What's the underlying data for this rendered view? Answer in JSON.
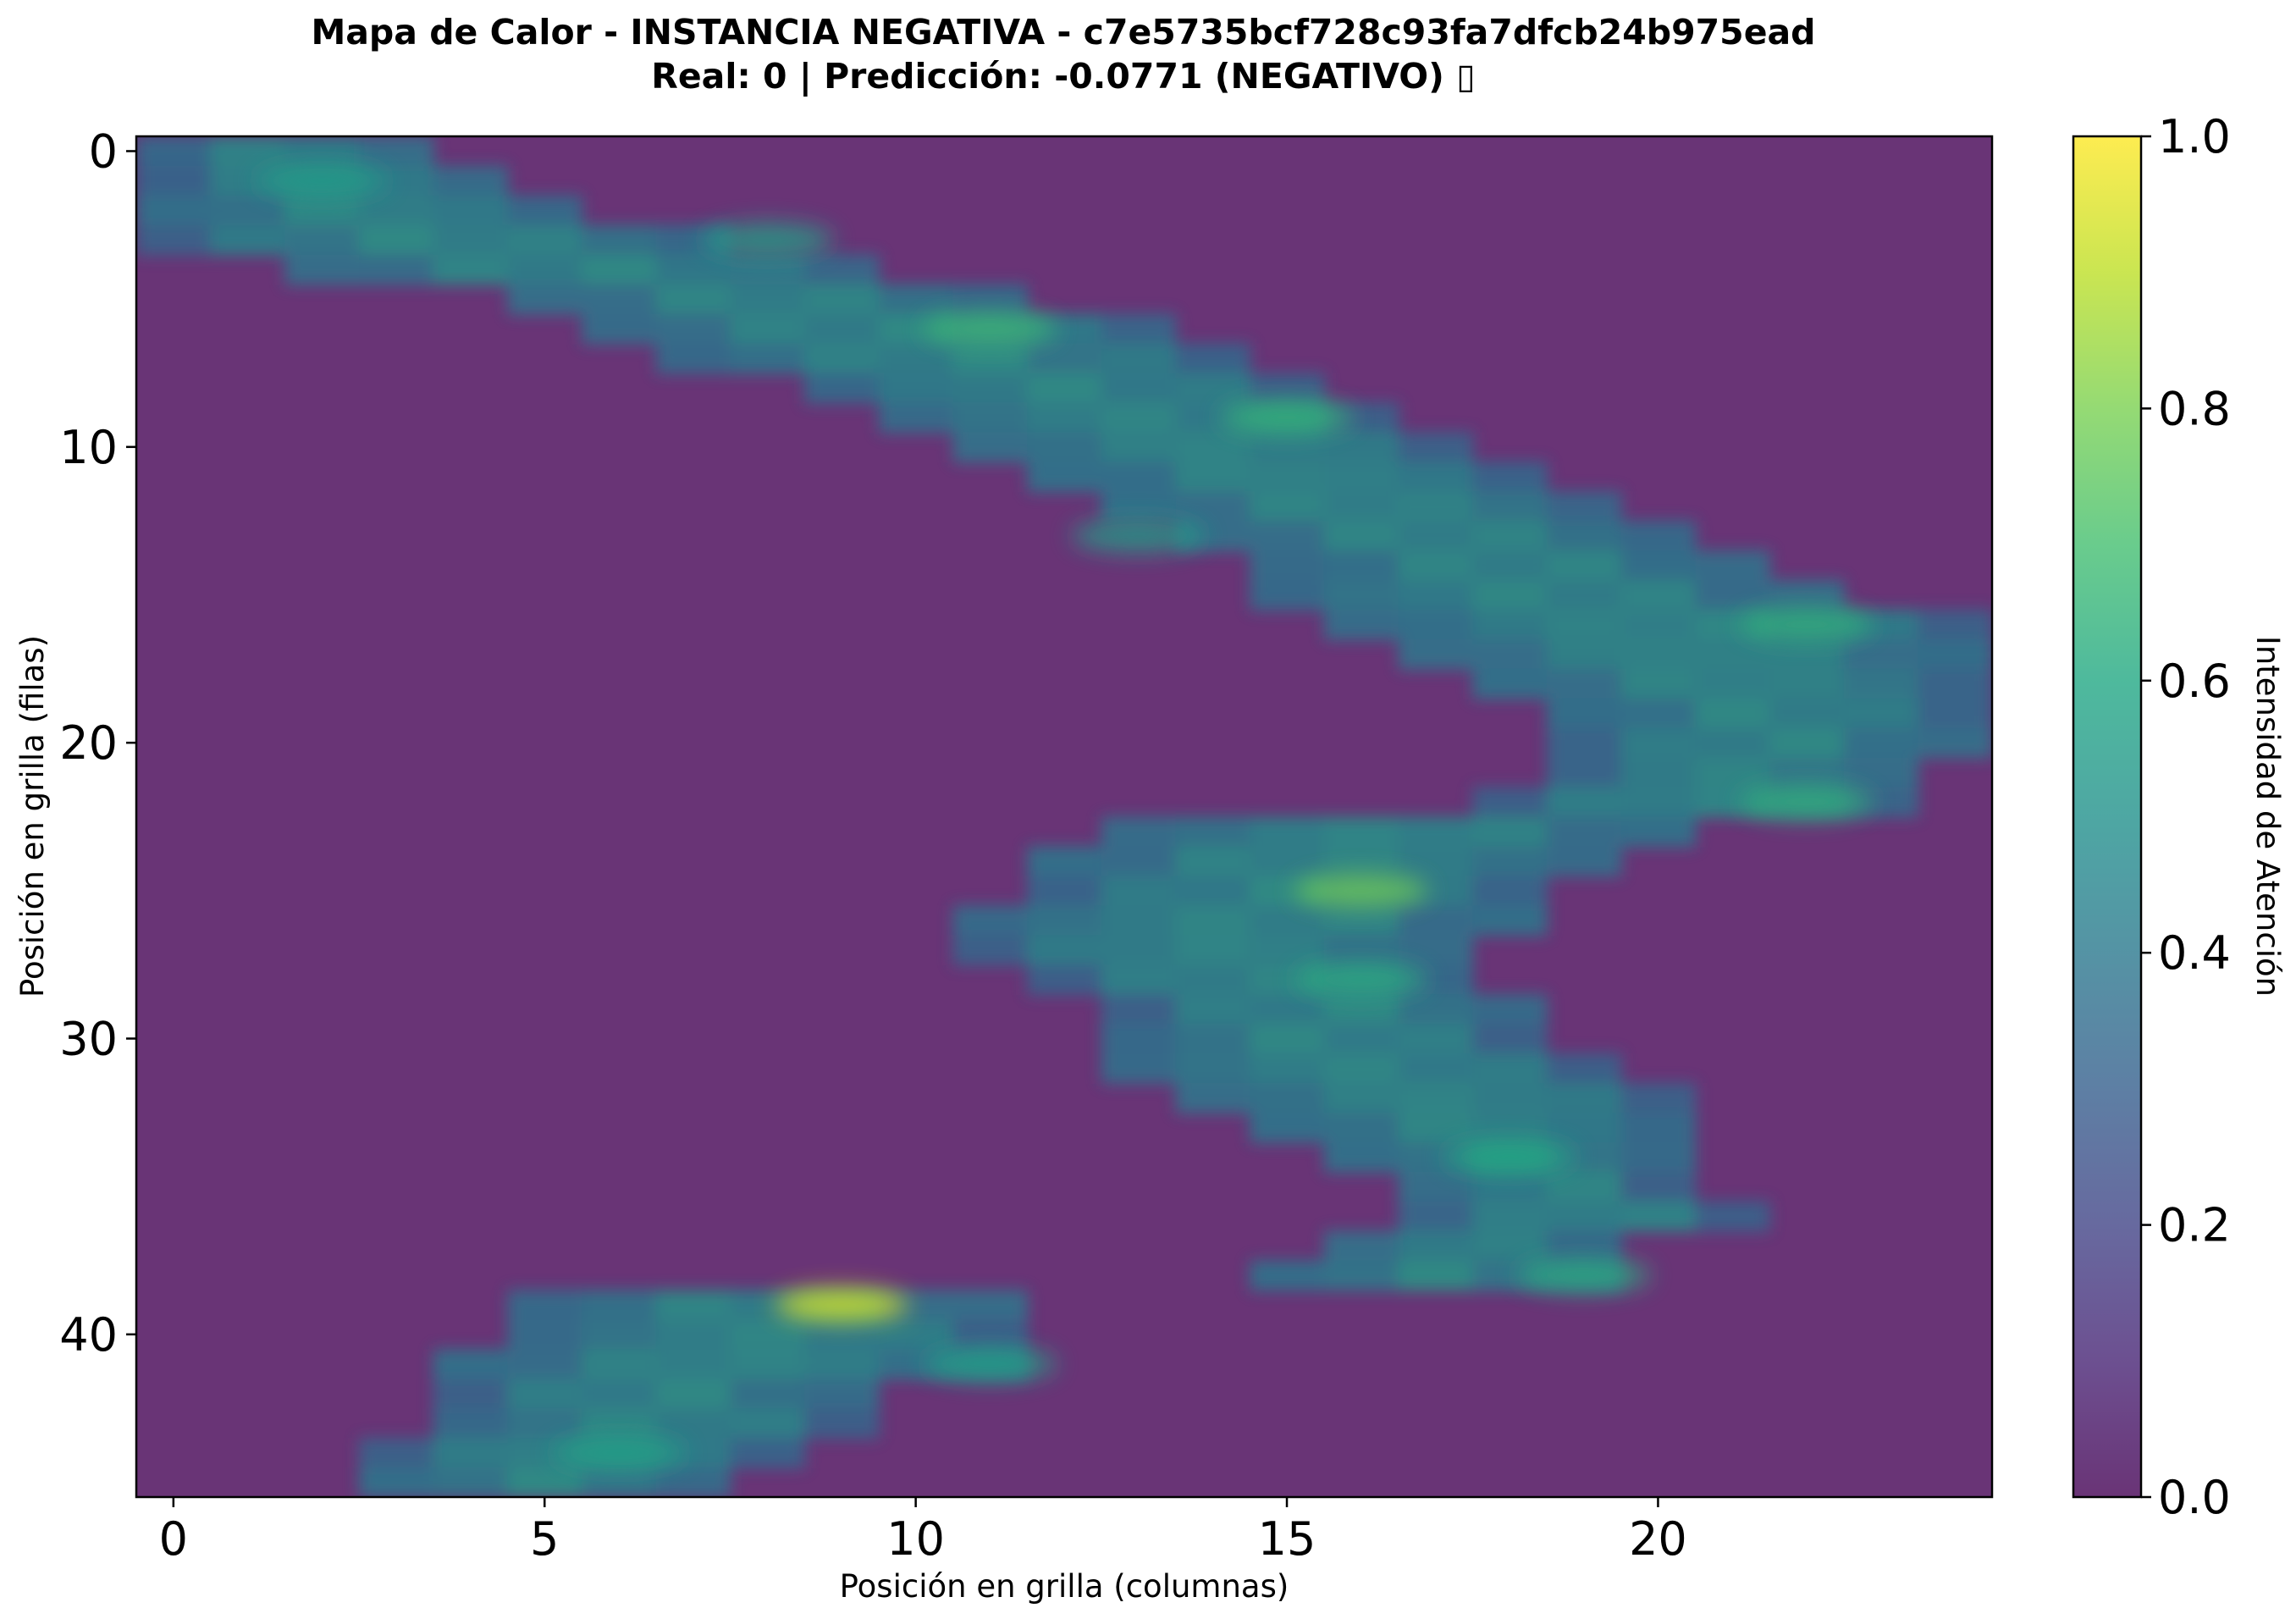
{
  "title_line1": "Mapa de Calor - INSTANCIA NEGATIVA - c7e5735bcf728c93fa7dfcb24b975ead",
  "title_line2": "Real: 0 | Predicción: -0.0771 (NEGATIVO) ▯",
  "chart_data": {
    "type": "heatmap",
    "xlabel": "Posición en grilla (columnas)",
    "ylabel": "Posición en grilla (filas)",
    "colorbar_label": "Intensidad de Atención",
    "colormap": "viridis",
    "alpha": 0.8,
    "grid": false,
    "n_cols": 25,
    "n_rows": 46,
    "xlim": [
      -0.5,
      24.5
    ],
    "ylim": [
      45.5,
      -0.5
    ],
    "xticks": [
      0,
      5,
      10,
      15,
      20
    ],
    "yticks": [
      0,
      10,
      20,
      30,
      40
    ],
    "clim": [
      0.0,
      1.0
    ],
    "colorbar_ticks": [
      "0.0",
      "0.2",
      "0.4",
      "0.6",
      "0.8",
      "1.0"
    ],
    "row_spans": [
      [
        [
          0,
          3
        ]
      ],
      [
        [
          0,
          4
        ]
      ],
      [
        [
          0,
          5
        ]
      ],
      [
        [
          0,
          7
        ]
      ],
      [
        [
          2,
          9
        ]
      ],
      [
        [
          5,
          11
        ]
      ],
      [
        [
          6,
          13
        ]
      ],
      [
        [
          7,
          14
        ]
      ],
      [
        [
          9,
          15
        ]
      ],
      [
        [
          10,
          16
        ]
      ],
      [
        [
          11,
          17
        ]
      ],
      [
        [
          12,
          18
        ]
      ],
      [
        [
          13,
          19
        ]
      ],
      [
        [
          14,
          20
        ]
      ],
      [
        [
          15,
          21
        ]
      ],
      [
        [
          15,
          22
        ]
      ],
      [
        [
          16,
          24
        ]
      ],
      [
        [
          17,
          24
        ]
      ],
      [
        [
          18,
          24
        ]
      ],
      [
        [
          19,
          24
        ]
      ],
      [
        [
          19,
          24
        ]
      ],
      [
        [
          19,
          23
        ]
      ],
      [
        [
          18,
          23
        ]
      ],
      [
        [
          13,
          20
        ]
      ],
      [
        [
          12,
          19
        ]
      ],
      [
        [
          12,
          18
        ]
      ],
      [
        [
          11,
          18
        ]
      ],
      [
        [
          11,
          17
        ]
      ],
      [
        [
          12,
          17
        ]
      ],
      [
        [
          13,
          18
        ]
      ],
      [
        [
          13,
          18
        ]
      ],
      [
        [
          13,
          19
        ]
      ],
      [
        [
          14,
          20
        ]
      ],
      [
        [
          15,
          20
        ]
      ],
      [
        [
          16,
          20
        ]
      ],
      [
        [
          17,
          20
        ]
      ],
      [
        [
          17,
          21
        ]
      ],
      [
        [
          16,
          19
        ]
      ],
      [
        [
          15,
          19
        ]
      ],
      [
        [
          5,
          11
        ]
      ],
      [
        [
          5,
          11
        ]
      ],
      [
        [
          4,
          11
        ]
      ],
      [
        [
          4,
          9
        ]
      ],
      [
        [
          4,
          9
        ]
      ],
      [
        [
          3,
          8
        ]
      ],
      [
        [
          3,
          7
        ]
      ]
    ],
    "hotspots": [
      {
        "col": 9,
        "row": 39,
        "value": 0.95
      },
      {
        "col": 16,
        "row": 25,
        "value": 0.78
      },
      {
        "col": 11,
        "row": 6,
        "value": 0.68
      },
      {
        "col": 15,
        "row": 9,
        "value": 0.66
      },
      {
        "col": 22,
        "row": 16,
        "value": 0.65
      },
      {
        "col": 22,
        "row": 22,
        "value": 0.64
      },
      {
        "col": 19,
        "row": 38,
        "value": 0.62
      },
      {
        "col": 18,
        "row": 34,
        "value": 0.6
      },
      {
        "col": 16,
        "row": 28,
        "value": 0.62
      },
      {
        "col": 8,
        "row": 3,
        "value": 0.58
      },
      {
        "col": 6,
        "row": 44,
        "value": 0.58
      },
      {
        "col": 13,
        "row": 13,
        "value": 0.56
      },
      {
        "col": 2,
        "row": 1,
        "value": 0.55
      },
      {
        "col": 11,
        "row": 41,
        "value": 0.58
      }
    ]
  }
}
